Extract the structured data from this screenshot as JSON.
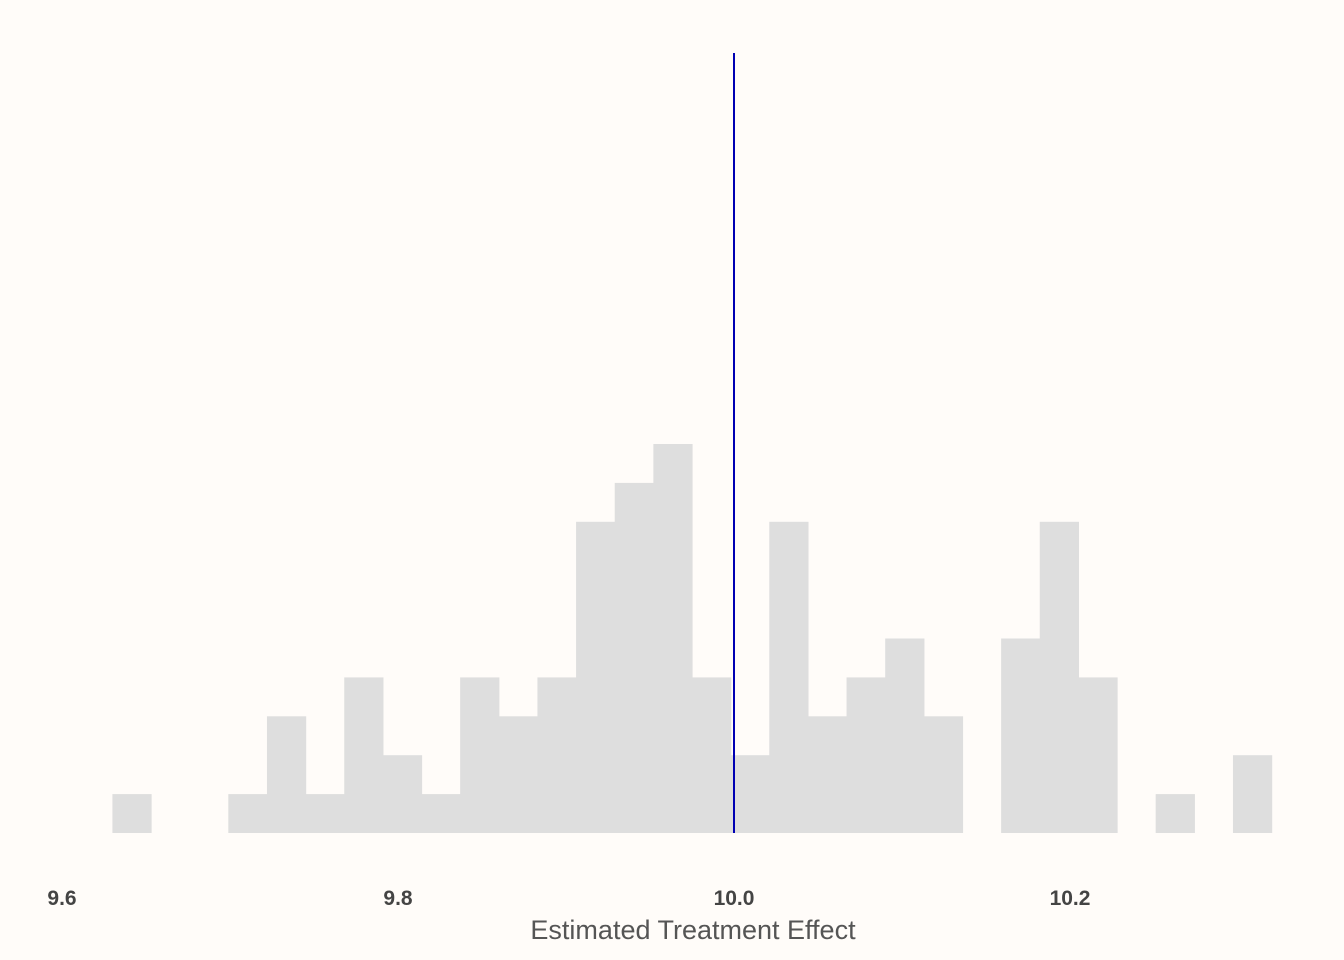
{
  "chart_data": {
    "type": "bar",
    "subtype": "histogram",
    "title": "",
    "xlabel": "Estimated Treatment Effect",
    "ylabel": "",
    "xlim": [
      9.6,
      10.32
    ],
    "ylim": [
      0,
      10
    ],
    "x_ticks": [
      9.6,
      9.8,
      10.0,
      10.2
    ],
    "x_tick_labels": [
      "9.6",
      "9.8",
      "10.0",
      "10.2"
    ],
    "bin_width": 0.023,
    "bins": [
      {
        "start": 9.63,
        "count": 1
      },
      {
        "start": 9.653,
        "count": 0
      },
      {
        "start": 9.676,
        "count": 0
      },
      {
        "start": 9.699,
        "count": 1
      },
      {
        "start": 9.722,
        "count": 3
      },
      {
        "start": 9.745,
        "count": 1
      },
      {
        "start": 9.768,
        "count": 4
      },
      {
        "start": 9.791,
        "count": 2
      },
      {
        "start": 9.814,
        "count": 1
      },
      {
        "start": 9.837,
        "count": 4
      },
      {
        "start": 9.86,
        "count": 3
      },
      {
        "start": 9.883,
        "count": 4
      },
      {
        "start": 9.906,
        "count": 8
      },
      {
        "start": 9.929,
        "count": 9
      },
      {
        "start": 9.952,
        "count": 10
      },
      {
        "start": 9.975,
        "count": 4
      },
      {
        "start": 9.998,
        "count": 2
      },
      {
        "start": 10.021,
        "count": 8
      },
      {
        "start": 10.044,
        "count": 3
      },
      {
        "start": 10.067,
        "count": 4
      },
      {
        "start": 10.09,
        "count": 5
      },
      {
        "start": 10.113,
        "count": 3
      },
      {
        "start": 10.136,
        "count": 0
      },
      {
        "start": 10.159,
        "count": 5
      },
      {
        "start": 10.182,
        "count": 8
      },
      {
        "start": 10.205,
        "count": 4
      },
      {
        "start": 10.228,
        "count": 0
      },
      {
        "start": 10.251,
        "count": 1
      },
      {
        "start": 10.274,
        "count": 0
      },
      {
        "start": 10.297,
        "count": 2
      }
    ],
    "reference_line": {
      "x": 10.0,
      "color": "#0000b3"
    },
    "bar_color": "#dedede",
    "background_color": "#fffcf9",
    "grid": false,
    "legend": "none"
  }
}
